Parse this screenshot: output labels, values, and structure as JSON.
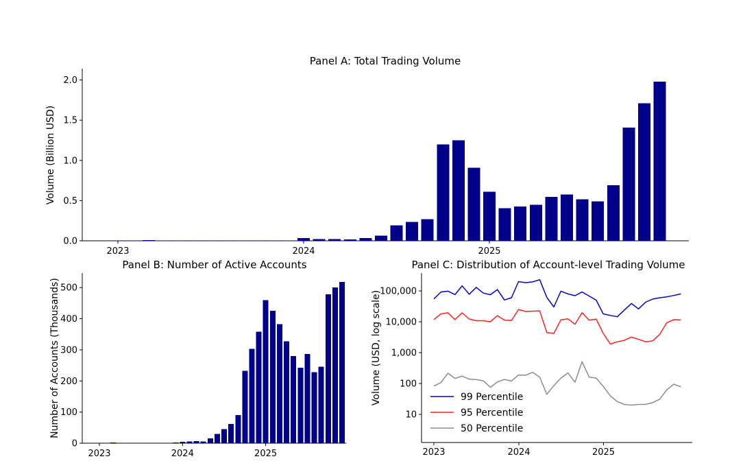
{
  "figure": {
    "background": "#ffffff",
    "text_color": "#000000",
    "months": [
      "2023-01",
      "2023-02",
      "2023-03",
      "2023-04",
      "2023-05",
      "2023-06",
      "2023-07",
      "2023-08",
      "2023-09",
      "2023-10",
      "2023-11",
      "2023-12",
      "2024-01",
      "2024-02",
      "2024-03",
      "2024-04",
      "2024-05",
      "2024-06",
      "2024-07",
      "2024-08",
      "2024-09",
      "2024-10",
      "2024-11",
      "2024-12",
      "2025-01",
      "2025-02",
      "2025-03",
      "2025-04",
      "2025-05",
      "2025-06",
      "2025-07",
      "2025-08",
      "2025-09",
      "2025-10",
      "2025-11",
      "2025-12"
    ]
  },
  "chart_data": [
    {
      "type": "bar",
      "panel_id": "panel-a",
      "title": "Panel A: Total Trading Volume",
      "xlabel": "",
      "ylabel": "Volume (Billion USD)",
      "bar_color": "#00008B",
      "ylim": [
        0,
        2.05
      ],
      "grid": false,
      "y_tick_labels": [
        "0.0",
        "0.5",
        "1.0",
        "1.5",
        "2.0"
      ],
      "x_tick_labels": [
        "2023",
        "2024",
        "2025"
      ],
      "categories": [
        "2023-01",
        "2023-02",
        "2023-03",
        "2023-04",
        "2023-05",
        "2023-06",
        "2023-07",
        "2023-08",
        "2023-09",
        "2023-10",
        "2023-11",
        "2023-12",
        "2024-01",
        "2024-02",
        "2024-03",
        "2024-04",
        "2024-05",
        "2024-06",
        "2024-07",
        "2024-08",
        "2024-09",
        "2024-10",
        "2024-11",
        "2024-12",
        "2025-01",
        "2025-02",
        "2025-03",
        "2025-04",
        "2025-05",
        "2025-06",
        "2025-07",
        "2025-08",
        "2025-09",
        "2025-10",
        "2025-11",
        "2025-12"
      ],
      "values": [
        0.003,
        0.006,
        0.007,
        0.004,
        0.003,
        0.004,
        0.003,
        0.003,
        0.004,
        0.003,
        0.004,
        0.006,
        0.034,
        0.022,
        0.021,
        0.016,
        0.036,
        0.065,
        0.19,
        0.235,
        0.27,
        1.2,
        1.25,
        0.91,
        0.61,
        0.405,
        0.425,
        0.45,
        0.545,
        0.575,
        0.515,
        0.49,
        0.69,
        1.41,
        1.71,
        1.98
      ]
    },
    {
      "type": "bar",
      "panel_id": "panel-b",
      "title": "Panel B: Number of Active Accounts",
      "xlabel": "",
      "ylabel": "Number of Accounts (Thousands)",
      "bar_color": "#00008B",
      "ylim": [
        0,
        530
      ],
      "grid": false,
      "y_tick_labels": [
        "0",
        "100",
        "200",
        "300",
        "400",
        "500"
      ],
      "x_tick_labels": [
        "2023",
        "2024",
        "2025"
      ],
      "categories": [
        "2023-01",
        "2023-02",
        "2023-03",
        "2023-04",
        "2023-05",
        "2023-06",
        "2023-07",
        "2023-08",
        "2023-09",
        "2023-10",
        "2023-11",
        "2023-12",
        "2024-01",
        "2024-02",
        "2024-03",
        "2024-04",
        "2024-05",
        "2024-06",
        "2024-07",
        "2024-08",
        "2024-09",
        "2024-10",
        "2024-11",
        "2024-12",
        "2025-01",
        "2025-02",
        "2025-03",
        "2025-04",
        "2025-05",
        "2025-06",
        "2025-07",
        "2025-08",
        "2025-09",
        "2025-10",
        "2025-11",
        "2025-12"
      ],
      "values": [
        0.6,
        1.2,
        2.0,
        1.0,
        1.2,
        1.6,
        1.2,
        1.0,
        1.6,
        1.2,
        1.6,
        2.2,
        4,
        5,
        7,
        5,
        15,
        30,
        45,
        62,
        90,
        233,
        303,
        358,
        460,
        425,
        382,
        327,
        280,
        242,
        287,
        228,
        246,
        478,
        500,
        518
      ]
    },
    {
      "type": "line",
      "panel_id": "panel-c",
      "title": "Panel C: Distribution of Account-level Trading Volume",
      "xlabel": "",
      "ylabel": "Volume (USD, log scale)",
      "yscale": "log",
      "ylim": [
        3,
        400000
      ],
      "grid": false,
      "legend_position": "lower left",
      "y_tick_labels": [
        "10",
        "100",
        "1,000",
        "10,000",
        "100,000"
      ],
      "x_tick_labels": [
        "2023",
        "2024",
        "2025"
      ],
      "x": [
        "2023-01",
        "2023-02",
        "2023-03",
        "2023-04",
        "2023-05",
        "2023-06",
        "2023-07",
        "2023-08",
        "2023-09",
        "2023-10",
        "2023-11",
        "2023-12",
        "2024-01",
        "2024-02",
        "2024-03",
        "2024-04",
        "2024-05",
        "2024-06",
        "2024-07",
        "2024-08",
        "2024-09",
        "2024-10",
        "2024-11",
        "2024-12",
        "2025-01",
        "2025-02",
        "2025-03",
        "2025-04",
        "2025-05",
        "2025-06",
        "2025-07",
        "2025-08",
        "2025-09",
        "2025-10",
        "2025-11",
        "2025-12"
      ],
      "series": [
        {
          "name": "99 Percentile",
          "color": "#0000CD",
          "values": [
            55000,
            92000,
            98000,
            76000,
            145000,
            78000,
            130000,
            85000,
            75000,
            110000,
            51000,
            60000,
            200000,
            185000,
            195000,
            230000,
            62000,
            30000,
            98000,
            80000,
            70000,
            92000,
            68000,
            50000,
            18000,
            16000,
            14500,
            24000,
            39000,
            26000,
            43000,
            54000,
            60000,
            64000,
            71000,
            80000
          ]
        },
        {
          "name": "95 Percentile",
          "color": "#FF2020",
          "values": [
            11700,
            18000,
            19500,
            11700,
            19500,
            12300,
            10800,
            10800,
            10000,
            15800,
            11300,
            11000,
            25000,
            21500,
            22000,
            22600,
            4500,
            4200,
            11500,
            12400,
            8300,
            19600,
            11300,
            12200,
            4200,
            1900,
            2250,
            2500,
            3200,
            2700,
            2250,
            2400,
            3900,
            9200,
            11700,
            11400
          ]
        },
        {
          "name": "50 Percentile",
          "color": "#8C8C8C",
          "values": [
            83,
            107,
            215,
            146,
            173,
            139,
            134,
            122,
            75,
            112,
            135,
            120,
            190,
            185,
            230,
            162,
            45,
            85,
            150,
            220,
            110,
            510,
            162,
            150,
            81,
            40,
            26,
            21,
            20,
            21,
            21,
            24,
            31,
            62,
            95,
            78
          ]
        }
      ]
    }
  ]
}
